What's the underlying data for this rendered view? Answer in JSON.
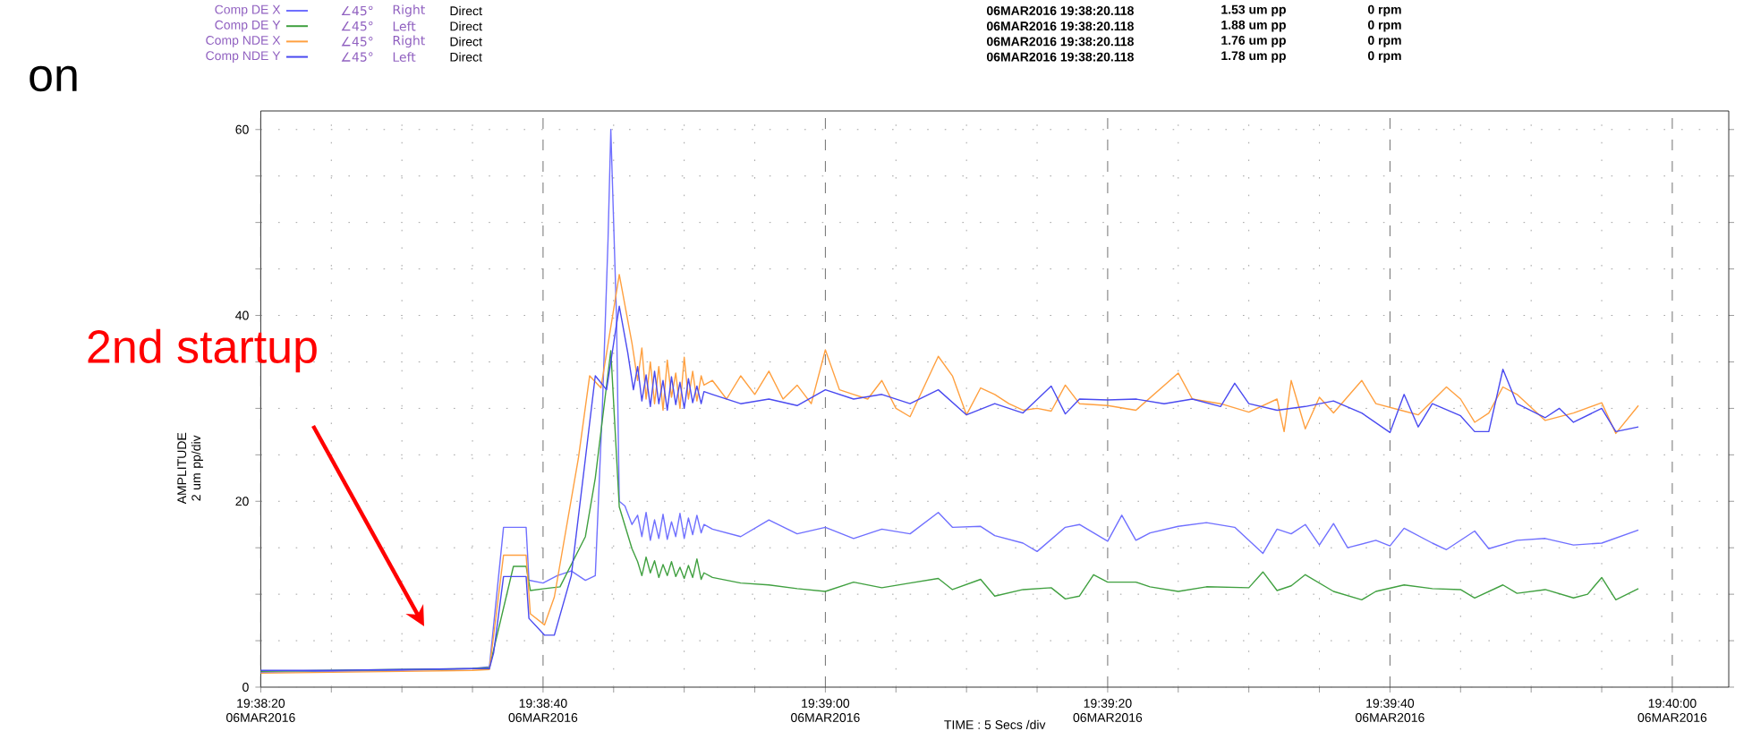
{
  "chart_data": {
    "type": "line",
    "xlabel": "TIME : 5 Secs /div",
    "ylabel": "AMPLITUDE 2 um pp/div",
    "xlim": [
      "2016-03-06T19:38:20",
      "2016-03-06T19:40:04"
    ],
    "xticks": [
      {
        "value": "2016-03-06T19:38:20",
        "label": "19:38:20 06MAR2016"
      },
      {
        "value": "2016-03-06T19:38:25",
        "label": null
      },
      {
        "value": "2016-03-06T19:38:30",
        "label": null
      },
      {
        "value": "2016-03-06T19:38:35",
        "label": null
      },
      {
        "value": "2016-03-06T19:38:40",
        "label": "19:38:40 06MAR2016"
      },
      {
        "value": "2016-03-06T19:38:45",
        "label": null
      },
      {
        "value": "2016-03-06T19:38:50",
        "label": null
      },
      {
        "value": "2016-03-06T19:38:55",
        "label": null
      },
      {
        "value": "2016-03-06T19:39:00",
        "label": "19:39:00 06MAR2016"
      },
      {
        "value": "2016-03-06T19:39:05",
        "label": null
      },
      {
        "value": "2016-03-06T19:39:10",
        "label": null
      },
      {
        "value": "2016-03-06T19:39:15",
        "label": null
      },
      {
        "value": "2016-03-06T19:39:20",
        "label": "19:39:20 06MAR2016"
      },
      {
        "value": "2016-03-06T19:39:25",
        "label": null
      },
      {
        "value": "2016-03-06T19:39:30",
        "label": null
      },
      {
        "value": "2016-03-06T19:39:35",
        "label": null
      },
      {
        "value": "2016-03-06T19:39:40",
        "label": "19:39:40 06MAR2016"
      },
      {
        "value": "2016-03-06T19:39:45",
        "label": null
      },
      {
        "value": "2016-03-06T19:39:50",
        "label": null
      },
      {
        "value": "2016-03-06T19:39:55",
        "label": null
      },
      {
        "value": "2016-03-06T19:40:00",
        "label": "19:40:00 06MAR2016"
      }
    ],
    "ylim": [
      0,
      62
    ],
    "yticks": [
      0,
      {
        "value": 5,
        "label": null
      },
      {
        "value": 10,
        "label": null
      },
      {
        "value": 15,
        "label": null
      },
      20,
      {
        "value": 25,
        "label": null
      },
      {
        "value": 30,
        "label": null
      },
      {
        "value": 35,
        "label": null
      },
      40,
      {
        "value": 45,
        "label": null
      },
      {
        "value": 50,
        "label": null
      },
      {
        "value": 55,
        "label": null
      },
      60
    ],
    "grid": true,
    "legend": "top",
    "annotations": [
      "on",
      "2nd startup",
      "∠45°",
      "Right",
      "Direct",
      "06MAR2016 19:38:20.118",
      "1.53 um pp",
      "0 rpm",
      "∠45°",
      "Left",
      "Direct",
      "06MAR2016 19:38:20.118",
      "1.88 um pp",
      "0 rpm",
      "∠45°",
      "Right",
      "Direct",
      "06MAR2016 19:38:20.118",
      "1.76 um pp",
      "0 rpm",
      "∠45°",
      "Left",
      "Direct",
      "06MAR2016 19:38:20.118",
      "1.78 um pp",
      "0 rpm"
    ],
    "series": [
      {
        "name": "Comp DE X",
        "color": "#7070ff",
        "x": [
          "2016-03-06T19:38:20",
          "2016-03-06T19:38:25",
          "2016-03-06T19:38:30",
          "2016-03-06T19:38:35",
          "2016-03-06T19:38:36.2",
          "2016-03-06T19:38:37.2",
          "2016-03-06T19:38:38.8",
          "2016-03-06T19:38:39",
          "2016-03-06T19:38:40",
          "2016-03-06T19:38:41",
          "2016-03-06T19:38:42",
          "2016-03-06T19:38:43",
          "2016-03-06T19:38:43.7",
          "2016-03-06T19:38:44.2",
          "2016-03-06T19:38:44.6",
          "2016-03-06T19:38:44.8",
          "2016-03-06T19:38:45.2",
          "2016-03-06T19:38:45.4",
          "2016-03-06T19:38:45.8",
          "2016-03-06T19:38:46.3",
          "2016-03-06T19:38:46.7",
          "2016-03-06T19:38:47",
          "2016-03-06T19:38:47.3",
          "2016-03-06T19:38:47.6",
          "2016-03-06T19:38:47.9",
          "2016-03-06T19:38:48.2",
          "2016-03-06T19:38:48.5",
          "2016-03-06T19:38:48.8",
          "2016-03-06T19:38:49.1",
          "2016-03-06T19:38:49.4",
          "2016-03-06T19:38:49.7",
          "2016-03-06T19:38:50",
          "2016-03-06T19:38:50.3",
          "2016-03-06T19:38:50.6",
          "2016-03-06T19:38:50.9",
          "2016-03-06T19:38:51.2",
          "2016-03-06T19:38:51.4",
          "2016-03-06T19:38:52",
          "2016-03-06T19:38:54",
          "2016-03-06T19:38:56",
          "2016-03-06T19:38:58",
          "2016-03-06T19:39:00",
          "2016-03-06T19:39:02",
          "2016-03-06T19:39:04",
          "2016-03-06T19:39:06",
          "2016-03-06T19:39:08",
          "2016-03-06T19:39:09",
          "2016-03-06T19:39:11",
          "2016-03-06T19:39:12",
          "2016-03-06T19:39:14",
          "2016-03-06T19:39:15",
          "2016-03-06T19:39:17",
          "2016-03-06T19:39:18",
          "2016-03-06T19:39:20",
          "2016-03-06T19:39:21",
          "2016-03-06T19:39:22",
          "2016-03-06T19:39:23",
          "2016-03-06T19:39:25",
          "2016-03-06T19:39:27",
          "2016-03-06T19:39:29",
          "2016-03-06T19:39:31",
          "2016-03-06T19:39:32",
          "2016-03-06T19:39:33",
          "2016-03-06T19:39:34",
          "2016-03-06T19:39:35",
          "2016-03-06T19:39:36",
          "2016-03-06T19:39:37",
          "2016-03-06T19:39:39",
          "2016-03-06T19:39:40",
          "2016-03-06T19:39:41",
          "2016-03-06T19:39:43",
          "2016-03-06T19:39:44",
          "2016-03-06T19:39:46",
          "2016-03-06T19:39:47",
          "2016-03-06T19:39:49",
          "2016-03-06T19:39:51",
          "2016-03-06T19:39:53",
          "2016-03-06T19:39:55",
          "2016-03-06T19:39:57.6"
        ],
        "values": [
          1.6,
          1.7,
          1.8,
          2.0,
          2.2,
          17.2,
          17.2,
          11.5,
          11.2,
          12,
          12.5,
          11.5,
          12,
          30,
          48,
          60,
          40,
          20,
          19.5,
          17.5,
          18.5,
          16.2,
          18.8,
          15.8,
          18,
          16,
          18.6,
          15.9,
          17.8,
          16.2,
          18.7,
          16,
          18.2,
          16.4,
          18.5,
          16.6,
          17.5,
          17,
          16.2,
          18,
          16.5,
          17.2,
          16,
          17,
          16.5,
          18.8,
          17.2,
          17.3,
          16.3,
          15.5,
          14.6,
          17.2,
          17.5,
          15.7,
          18.5,
          15.8,
          16.6,
          17.3,
          17.7,
          17.2,
          14.4,
          17,
          16.5,
          17.5,
          15.3,
          17.6,
          15,
          15.8,
          15.2,
          17.1,
          15.5,
          14.8,
          16.8,
          14.9,
          15.8,
          16,
          15.3,
          15.5,
          16.9
        ]
      },
      {
        "name": "Comp DE Y",
        "color": "#40a040",
        "x": [
          "2016-03-06T19:38:20",
          "2016-03-06T19:38:25",
          "2016-03-06T19:38:30",
          "2016-03-06T19:38:35",
          "2016-03-06T19:38:36.2",
          "2016-03-06T19:38:37.9",
          "2016-03-06T19:38:38.8",
          "2016-03-06T19:38:39.1",
          "2016-03-06T19:38:40.1",
          "2016-03-06T19:38:41.2",
          "2016-03-06T19:38:43",
          "2016-03-06T19:38:43.7",
          "2016-03-06T19:38:44.8",
          "2016-03-06T19:38:45.4",
          "2016-03-06T19:38:46.3",
          "2016-03-06T19:38:46.7",
          "2016-03-06T19:38:47",
          "2016-03-06T19:38:47.3",
          "2016-03-06T19:38:47.6",
          "2016-03-06T19:38:47.9",
          "2016-03-06T19:38:48.2",
          "2016-03-06T19:38:48.5",
          "2016-03-06T19:38:48.8",
          "2016-03-06T19:38:49.1",
          "2016-03-06T19:38:49.4",
          "2016-03-06T19:38:49.7",
          "2016-03-06T19:38:50",
          "2016-03-06T19:38:50.3",
          "2016-03-06T19:38:50.6",
          "2016-03-06T19:38:50.9",
          "2016-03-06T19:38:51.2",
          "2016-03-06T19:38:51.4",
          "2016-03-06T19:38:52",
          "2016-03-06T19:38:54",
          "2016-03-06T19:38:56",
          "2016-03-06T19:38:58",
          "2016-03-06T19:39:00",
          "2016-03-06T19:39:02",
          "2016-03-06T19:39:04",
          "2016-03-06T19:39:06",
          "2016-03-06T19:39:08",
          "2016-03-06T19:39:09",
          "2016-03-06T19:39:11",
          "2016-03-06T19:39:12",
          "2016-03-06T19:39:14",
          "2016-03-06T19:39:16",
          "2016-03-06T19:39:17",
          "2016-03-06T19:39:18",
          "2016-03-06T19:39:19",
          "2016-03-06T19:39:20",
          "2016-03-06T19:39:22",
          "2016-03-06T19:39:23",
          "2016-03-06T19:39:25",
          "2016-03-06T19:39:27",
          "2016-03-06T19:39:30",
          "2016-03-06T19:39:31",
          "2016-03-06T19:39:32",
          "2016-03-06T19:39:33",
          "2016-03-06T19:39:34",
          "2016-03-06T19:39:36",
          "2016-03-06T19:39:38",
          "2016-03-06T19:39:39",
          "2016-03-06T19:39:41",
          "2016-03-06T19:39:43",
          "2016-03-06T19:39:45",
          "2016-03-06T19:39:46",
          "2016-03-06T19:39:48",
          "2016-03-06T19:39:49",
          "2016-03-06T19:39:51",
          "2016-03-06T19:39:53",
          "2016-03-06T19:39:54",
          "2016-03-06T19:39:55",
          "2016-03-06T19:39:56",
          "2016-03-06T19:39:57.6"
        ],
        "values": [
          1.7,
          1.8,
          1.9,
          2.0,
          2.1,
          13,
          13,
          10.4,
          10.6,
          10.8,
          16.2,
          22.5,
          36.2,
          19.4,
          14.9,
          13.5,
          12,
          14,
          12.3,
          13.6,
          11.8,
          13.2,
          12,
          13.5,
          11.9,
          12.9,
          11.7,
          13.1,
          11.8,
          13.8,
          11.6,
          12.3,
          11.8,
          11.2,
          11,
          10.6,
          10.3,
          11.3,
          10.7,
          11.2,
          11.7,
          10.5,
          11.6,
          9.8,
          10.5,
          10.7,
          9.5,
          9.8,
          12.1,
          11.3,
          11.3,
          10.8,
          10.3,
          10.8,
          10.7,
          12.4,
          10.4,
          10.9,
          12.1,
          10.3,
          9.4,
          10.3,
          11,
          10.6,
          10.5,
          9.6,
          11,
          10.1,
          10.5,
          9.6,
          10,
          11.8,
          9.4,
          10.6
        ]
      },
      {
        "name": "Comp NDE X",
        "color": "#ffa040",
        "x": [
          "2016-03-06T19:38:20",
          "2016-03-06T19:38:25",
          "2016-03-06T19:38:30",
          "2016-03-06T19:38:35",
          "2016-03-06T19:38:36.2",
          "2016-03-06T19:38:37.2",
          "2016-03-06T19:38:38.8",
          "2016-03-06T19:38:39.1",
          "2016-03-06T19:38:40.1",
          "2016-03-06T19:38:40.8",
          "2016-03-06T19:38:42.5",
          "2016-03-06T19:38:43.3",
          "2016-03-06T19:38:44.1",
          "2016-03-06T19:38:45.4",
          "2016-03-06T19:38:46.3",
          "2016-03-06T19:38:46.7",
          "2016-03-06T19:38:47",
          "2016-03-06T19:38:47.3",
          "2016-03-06T19:38:47.6",
          "2016-03-06T19:38:47.9",
          "2016-03-06T19:38:48.2",
          "2016-03-06T19:38:48.5",
          "2016-03-06T19:38:48.8",
          "2016-03-06T19:38:49.1",
          "2016-03-06T19:38:49.4",
          "2016-03-06T19:38:49.7",
          "2016-03-06T19:38:50",
          "2016-03-06T19:38:50.3",
          "2016-03-06T19:38:50.6",
          "2016-03-06T19:38:50.9",
          "2016-03-06T19:38:51.2",
          "2016-03-06T19:38:51.4",
          "2016-03-06T19:38:52",
          "2016-03-06T19:38:53",
          "2016-03-06T19:38:54",
          "2016-03-06T19:38:55",
          "2016-03-06T19:38:56",
          "2016-03-06T19:38:57",
          "2016-03-06T19:38:58",
          "2016-03-06T19:38:59",
          "2016-03-06T19:39:00",
          "2016-03-06T19:39:01",
          "2016-03-06T19:39:02",
          "2016-03-06T19:39:03",
          "2016-03-06T19:39:04",
          "2016-03-06T19:39:05",
          "2016-03-06T19:39:06",
          "2016-03-06T19:39:08",
          "2016-03-06T19:39:09",
          "2016-03-06T19:39:10",
          "2016-03-06T19:39:11",
          "2016-03-06T19:39:12",
          "2016-03-06T19:39:13",
          "2016-03-06T19:39:14",
          "2016-03-06T19:39:15",
          "2016-03-06T19:39:16",
          "2016-03-06T19:39:17",
          "2016-03-06T19:39:18",
          "2016-03-06T19:39:20",
          "2016-03-06T19:39:22",
          "2016-03-06T19:39:25",
          "2016-03-06T19:39:26",
          "2016-03-06T19:39:28",
          "2016-03-06T19:39:30",
          "2016-03-06T19:39:32",
          "2016-03-06T19:39:32.5",
          "2016-03-06T19:39:33",
          "2016-03-06T19:39:34",
          "2016-03-06T19:39:35",
          "2016-03-06T19:39:36",
          "2016-03-06T19:39:38",
          "2016-03-06T19:39:39",
          "2016-03-06T19:39:41",
          "2016-03-06T19:39:42",
          "2016-03-06T19:39:44",
          "2016-03-06T19:39:45",
          "2016-03-06T19:39:46",
          "2016-03-06T19:39:47",
          "2016-03-06T19:39:48",
          "2016-03-06T19:39:49",
          "2016-03-06T19:39:51",
          "2016-03-06T19:39:53",
          "2016-03-06T19:39:55",
          "2016-03-06T19:39:56",
          "2016-03-06T19:39:57.6"
        ],
        "values": [
          1.5,
          1.6,
          1.7,
          1.8,
          1.9,
          14.2,
          14.2,
          7.9,
          6.7,
          9.7,
          24.6,
          33.5,
          32.2,
          44.4,
          37,
          33,
          36.5,
          31,
          35,
          30.5,
          34.5,
          29.8,
          35.2,
          31.2,
          33.8,
          30,
          35.5,
          31,
          34,
          30.8,
          33.5,
          32.5,
          33,
          31,
          33.5,
          31.5,
          34,
          31,
          32.5,
          30.5,
          36.3,
          32,
          31.5,
          31,
          33,
          30,
          29.1,
          35.6,
          33.5,
          29.3,
          32.2,
          31.5,
          30.5,
          29.8,
          30,
          29.7,
          32.5,
          30.5,
          30.3,
          29.8,
          33.8,
          31,
          30.5,
          29.6,
          31,
          27.5,
          33,
          27.8,
          31.2,
          29.5,
          33,
          30.5,
          29.7,
          29.3,
          32.3,
          31,
          28.5,
          29.5,
          32.3,
          31.5,
          28.7,
          29.5,
          30.6,
          27.3,
          30.3
        ]
      },
      {
        "name": "Comp NDE Y",
        "color": "#4a4af0",
        "x": [
          "2016-03-06T19:38:20",
          "2016-03-06T19:38:25",
          "2016-03-06T19:38:30",
          "2016-03-06T19:38:35",
          "2016-03-06T19:38:36.2",
          "2016-03-06T19:38:36.5",
          "2016-03-06T19:38:37.2",
          "2016-03-06T19:38:38.8",
          "2016-03-06T19:38:39",
          "2016-03-06T19:38:40.1",
          "2016-03-06T19:38:40.8",
          "2016-03-06T19:38:42",
          "2016-03-06T19:38:43",
          "2016-03-06T19:38:43.7",
          "2016-03-06T19:38:44.5",
          "2016-03-06T19:38:45.4",
          "2016-03-06T19:38:46",
          "2016-03-06T19:38:46.4",
          "2016-03-06T19:38:46.7",
          "2016-03-06T19:38:47",
          "2016-03-06T19:38:47.3",
          "2016-03-06T19:38:47.6",
          "2016-03-06T19:38:47.9",
          "2016-03-06T19:38:48.2",
          "2016-03-06T19:38:48.5",
          "2016-03-06T19:38:48.8",
          "2016-03-06T19:38:49.1",
          "2016-03-06T19:38:49.4",
          "2016-03-06T19:38:49.7",
          "2016-03-06T19:38:50",
          "2016-03-06T19:38:50.3",
          "2016-03-06T19:38:50.6",
          "2016-03-06T19:38:50.9",
          "2016-03-06T19:38:51.2",
          "2016-03-06T19:38:51.4",
          "2016-03-06T19:38:52",
          "2016-03-06T19:38:54",
          "2016-03-06T19:38:56",
          "2016-03-06T19:38:58",
          "2016-03-06T19:39:00",
          "2016-03-06T19:39:02",
          "2016-03-06T19:39:04",
          "2016-03-06T19:39:06",
          "2016-03-06T19:39:08",
          "2016-03-06T19:39:10",
          "2016-03-06T19:39:12",
          "2016-03-06T19:39:14",
          "2016-03-06T19:39:16",
          "2016-03-06T19:39:17",
          "2016-03-06T19:39:18",
          "2016-03-06T19:39:20",
          "2016-03-06T19:39:22",
          "2016-03-06T19:39:24",
          "2016-03-06T19:39:26",
          "2016-03-06T19:39:28",
          "2016-03-06T19:39:29",
          "2016-03-06T19:39:30",
          "2016-03-06T19:39:32",
          "2016-03-06T19:39:34",
          "2016-03-06T19:39:36",
          "2016-03-06T19:39:38",
          "2016-03-06T19:39:40",
          "2016-03-06T19:39:41",
          "2016-03-06T19:39:42",
          "2016-03-06T19:39:43",
          "2016-03-06T19:39:45",
          "2016-03-06T19:39:46",
          "2016-03-06T19:39:47",
          "2016-03-06T19:39:48",
          "2016-03-06T19:39:49",
          "2016-03-06T19:39:51",
          "2016-03-06T19:39:52",
          "2016-03-06T19:39:53",
          "2016-03-06T19:39:55",
          "2016-03-06T19:39:56",
          "2016-03-06T19:39:57.6"
        ],
        "values": [
          1.8,
          1.8,
          1.9,
          2.0,
          2.0,
          3.7,
          11.9,
          11.9,
          7.4,
          5.6,
          5.6,
          12,
          24.6,
          33.5,
          32,
          41,
          36,
          32,
          34.5,
          30.8,
          33.6,
          30.2,
          34,
          30.5,
          33,
          29.8,
          33.4,
          30.4,
          32.8,
          30,
          33.2,
          30.6,
          32.4,
          30.5,
          31.8,
          31.5,
          30.5,
          31,
          30.3,
          32,
          31,
          31.5,
          30.5,
          32,
          29.3,
          30.5,
          29.5,
          32.4,
          29.4,
          31,
          30.9,
          31,
          30.5,
          31,
          30.2,
          32.7,
          30.5,
          29.8,
          30.2,
          30.8,
          29.5,
          27.4,
          31.5,
          28,
          30.5,
          29.2,
          27.5,
          27.5,
          34.2,
          30.5,
          29,
          30,
          28.5,
          30,
          27.5,
          28
        ]
      }
    ]
  }
}
